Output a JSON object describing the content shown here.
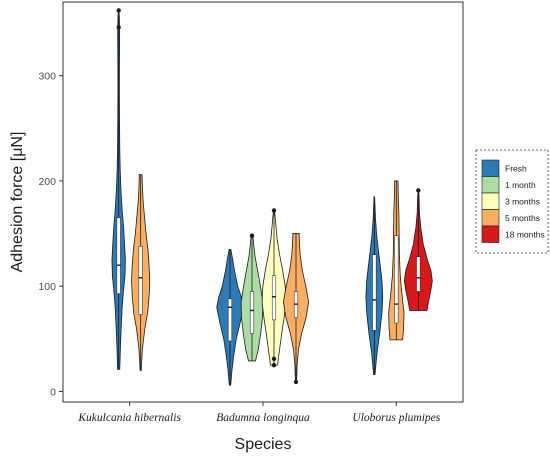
{
  "chart_data": {
    "type": "violin",
    "xlabel": "Species",
    "ylabel": "Adhesion force [μN]",
    "ylim": [
      -10,
      370
    ],
    "yticks": [
      0,
      100,
      200,
      300
    ],
    "grid": false,
    "legend_position": "right",
    "categories": [
      "Kukulcania hibernalis",
      "Badumna longinqua",
      "Uloborus plumipes"
    ],
    "series": [
      {
        "name": "Fresh",
        "color": "#2c7bb6"
      },
      {
        "name": "1 month",
        "color": "#abdda4"
      },
      {
        "name": "3 months",
        "color": "#ffffbf"
      },
      {
        "name": "5 months",
        "color": "#fdae61"
      },
      {
        "name": "18 months",
        "color": "#d7191c"
      }
    ],
    "violins": [
      {
        "category": 0,
        "series": 0,
        "min": 21,
        "q1": 93,
        "median": 120,
        "q3": 165,
        "max": 362,
        "outliers": [
          346,
          362
        ],
        "density": [
          [
            21,
            0.08
          ],
          [
            40,
            0.12
          ],
          [
            60,
            0.18
          ],
          [
            80,
            0.25
          ],
          [
            95,
            0.34
          ],
          [
            110,
            0.45
          ],
          [
            125,
            0.48
          ],
          [
            140,
            0.42
          ],
          [
            155,
            0.36
          ],
          [
            170,
            0.26
          ],
          [
            190,
            0.17
          ],
          [
            210,
            0.11
          ],
          [
            230,
            0.08
          ],
          [
            260,
            0.06
          ],
          [
            290,
            0.05
          ],
          [
            320,
            0.06
          ],
          [
            340,
            0.07
          ],
          [
            355,
            0.05
          ],
          [
            362,
            0.02
          ]
        ]
      },
      {
        "category": 0,
        "series": 3,
        "min": 20,
        "q1": 73,
        "median": 108,
        "q3": 138,
        "max": 206,
        "outliers": [],
        "density": [
          [
            20,
            0.04
          ],
          [
            40,
            0.12
          ],
          [
            60,
            0.3
          ],
          [
            75,
            0.5
          ],
          [
            90,
            0.6
          ],
          [
            105,
            0.65
          ],
          [
            120,
            0.6
          ],
          [
            135,
            0.52
          ],
          [
            150,
            0.38
          ],
          [
            165,
            0.28
          ],
          [
            180,
            0.18
          ],
          [
            195,
            0.12
          ],
          [
            206,
            0.1
          ]
        ]
      },
      {
        "category": 1,
        "series": 0,
        "min": 6,
        "q1": 48,
        "median": 80,
        "q3": 88,
        "max": 135,
        "outliers": [],
        "density": [
          [
            6,
            0.05
          ],
          [
            20,
            0.14
          ],
          [
            35,
            0.28
          ],
          [
            50,
            0.45
          ],
          [
            65,
            0.72
          ],
          [
            80,
            0.95
          ],
          [
            90,
            0.8
          ],
          [
            100,
            0.55
          ],
          [
            115,
            0.32
          ],
          [
            125,
            0.2
          ],
          [
            135,
            0.06
          ]
        ]
      },
      {
        "category": 1,
        "series": 1,
        "min": 29,
        "q1": 55,
        "median": 77,
        "q3": 95,
        "max": 149,
        "outliers": [
          148
        ],
        "density": [
          [
            29,
            0.25
          ],
          [
            40,
            0.45
          ],
          [
            55,
            0.62
          ],
          [
            70,
            0.75
          ],
          [
            85,
            0.78
          ],
          [
            100,
            0.6
          ],
          [
            115,
            0.4
          ],
          [
            128,
            0.22
          ],
          [
            140,
            0.12
          ],
          [
            149,
            0.05
          ]
        ]
      },
      {
        "category": 1,
        "series": 2,
        "min": 25,
        "q1": 68,
        "median": 90,
        "q3": 110,
        "max": 172,
        "outliers": [
          25,
          31,
          172
        ],
        "density": [
          [
            25,
            0.25
          ],
          [
            40,
            0.4
          ],
          [
            55,
            0.55
          ],
          [
            70,
            0.72
          ],
          [
            85,
            0.85
          ],
          [
            100,
            0.8
          ],
          [
            115,
            0.62
          ],
          [
            130,
            0.4
          ],
          [
            145,
            0.22
          ],
          [
            160,
            0.12
          ],
          [
            172,
            0.04
          ]
        ]
      },
      {
        "category": 1,
        "series": 3,
        "min": 9,
        "q1": 70,
        "median": 83,
        "q3": 95,
        "max": 150,
        "outliers": [
          9
        ],
        "density": [
          [
            9,
            0.04
          ],
          [
            25,
            0.08
          ],
          [
            40,
            0.18
          ],
          [
            55,
            0.4
          ],
          [
            70,
            0.72
          ],
          [
            85,
            0.9
          ],
          [
            100,
            0.7
          ],
          [
            115,
            0.45
          ],
          [
            130,
            0.3
          ],
          [
            140,
            0.25
          ],
          [
            150,
            0.22
          ]
        ]
      },
      {
        "category": 2,
        "series": 0,
        "min": 16,
        "q1": 58,
        "median": 87,
        "q3": 130,
        "max": 185,
        "outliers": [],
        "density": [
          [
            16,
            0.05
          ],
          [
            35,
            0.18
          ],
          [
            55,
            0.38
          ],
          [
            75,
            0.55
          ],
          [
            90,
            0.6
          ],
          [
            105,
            0.55
          ],
          [
            120,
            0.42
          ],
          [
            135,
            0.28
          ],
          [
            150,
            0.16
          ],
          [
            165,
            0.08
          ],
          [
            185,
            0.02
          ]
        ]
      },
      {
        "category": 2,
        "series": 3,
        "min": 49,
        "q1": 65,
        "median": 83,
        "q3": 148,
        "max": 200,
        "outliers": [],
        "density": [
          [
            49,
            0.45
          ],
          [
            60,
            0.52
          ],
          [
            75,
            0.55
          ],
          [
            90,
            0.42
          ],
          [
            110,
            0.28
          ],
          [
            130,
            0.22
          ],
          [
            150,
            0.2
          ],
          [
            170,
            0.18
          ],
          [
            185,
            0.14
          ],
          [
            200,
            0.12
          ]
        ]
      },
      {
        "category": 2,
        "series": 4,
        "min": 77,
        "q1": 95,
        "median": 108,
        "q3": 128,
        "max": 191,
        "outliers": [
          191
        ],
        "density": [
          [
            77,
            0.62
          ],
          [
            85,
            0.72
          ],
          [
            95,
            0.88
          ],
          [
            105,
            1.0
          ],
          [
            115,
            0.9
          ],
          [
            125,
            0.65
          ],
          [
            140,
            0.35
          ],
          [
            155,
            0.18
          ],
          [
            170,
            0.08
          ],
          [
            185,
            0.05
          ],
          [
            191,
            0.02
          ]
        ]
      }
    ]
  }
}
